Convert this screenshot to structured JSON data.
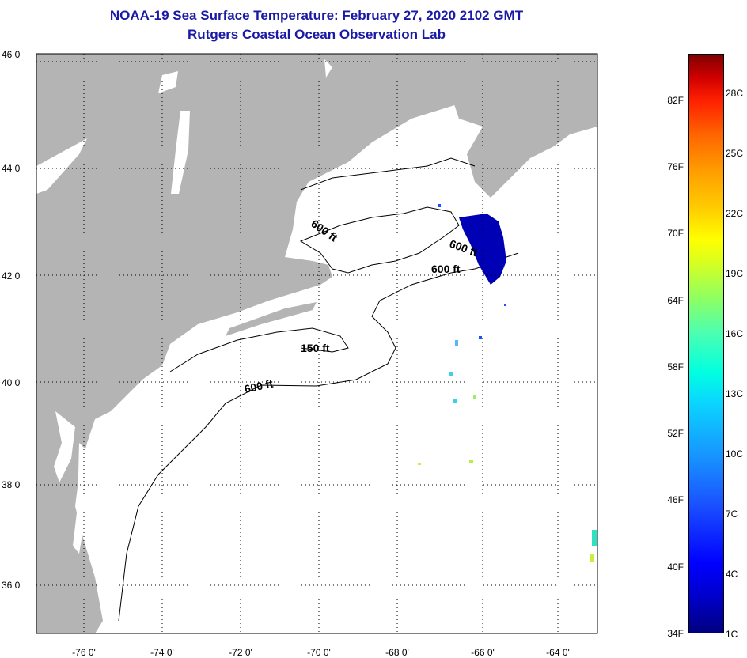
{
  "title": {
    "line1": "NOAA-19 Sea Surface Temperature:  February 27, 2020 2102 GMT",
    "line2": "Rutgers Coastal Ocean Observation Lab"
  },
  "axes": {
    "latitude_labels": [
      "46 0'",
      "44 0'",
      "42 0'",
      "40 0'",
      "38 0'",
      "36 0'"
    ],
    "longitude_labels": [
      "-76 0'",
      "-74 0'",
      "-72 0'",
      "-70 0'",
      "-68 0'",
      "-66 0'",
      "-64 0'"
    ]
  },
  "contours": {
    "label_600_north": "600 ft",
    "label_600_gulf": "600 ft",
    "label_600_georges": "600 ft",
    "label_150": "150 ft",
    "label_600_shelf": "600 ft"
  },
  "colorbar": {
    "fahrenheit": [
      "82F",
      "76F",
      "70F",
      "64F",
      "58F",
      "52F",
      "46F",
      "40F",
      "34F"
    ],
    "celsius": [
      "28C",
      "25C",
      "22C",
      "19C",
      "16C",
      "13C",
      "10C",
      "7C",
      "4C",
      "1C"
    ]
  },
  "colors": {
    "land": "#b4b4b4",
    "water": "#ffffff",
    "title": "#1a1aa6",
    "cold_patch": "#0000b4"
  }
}
